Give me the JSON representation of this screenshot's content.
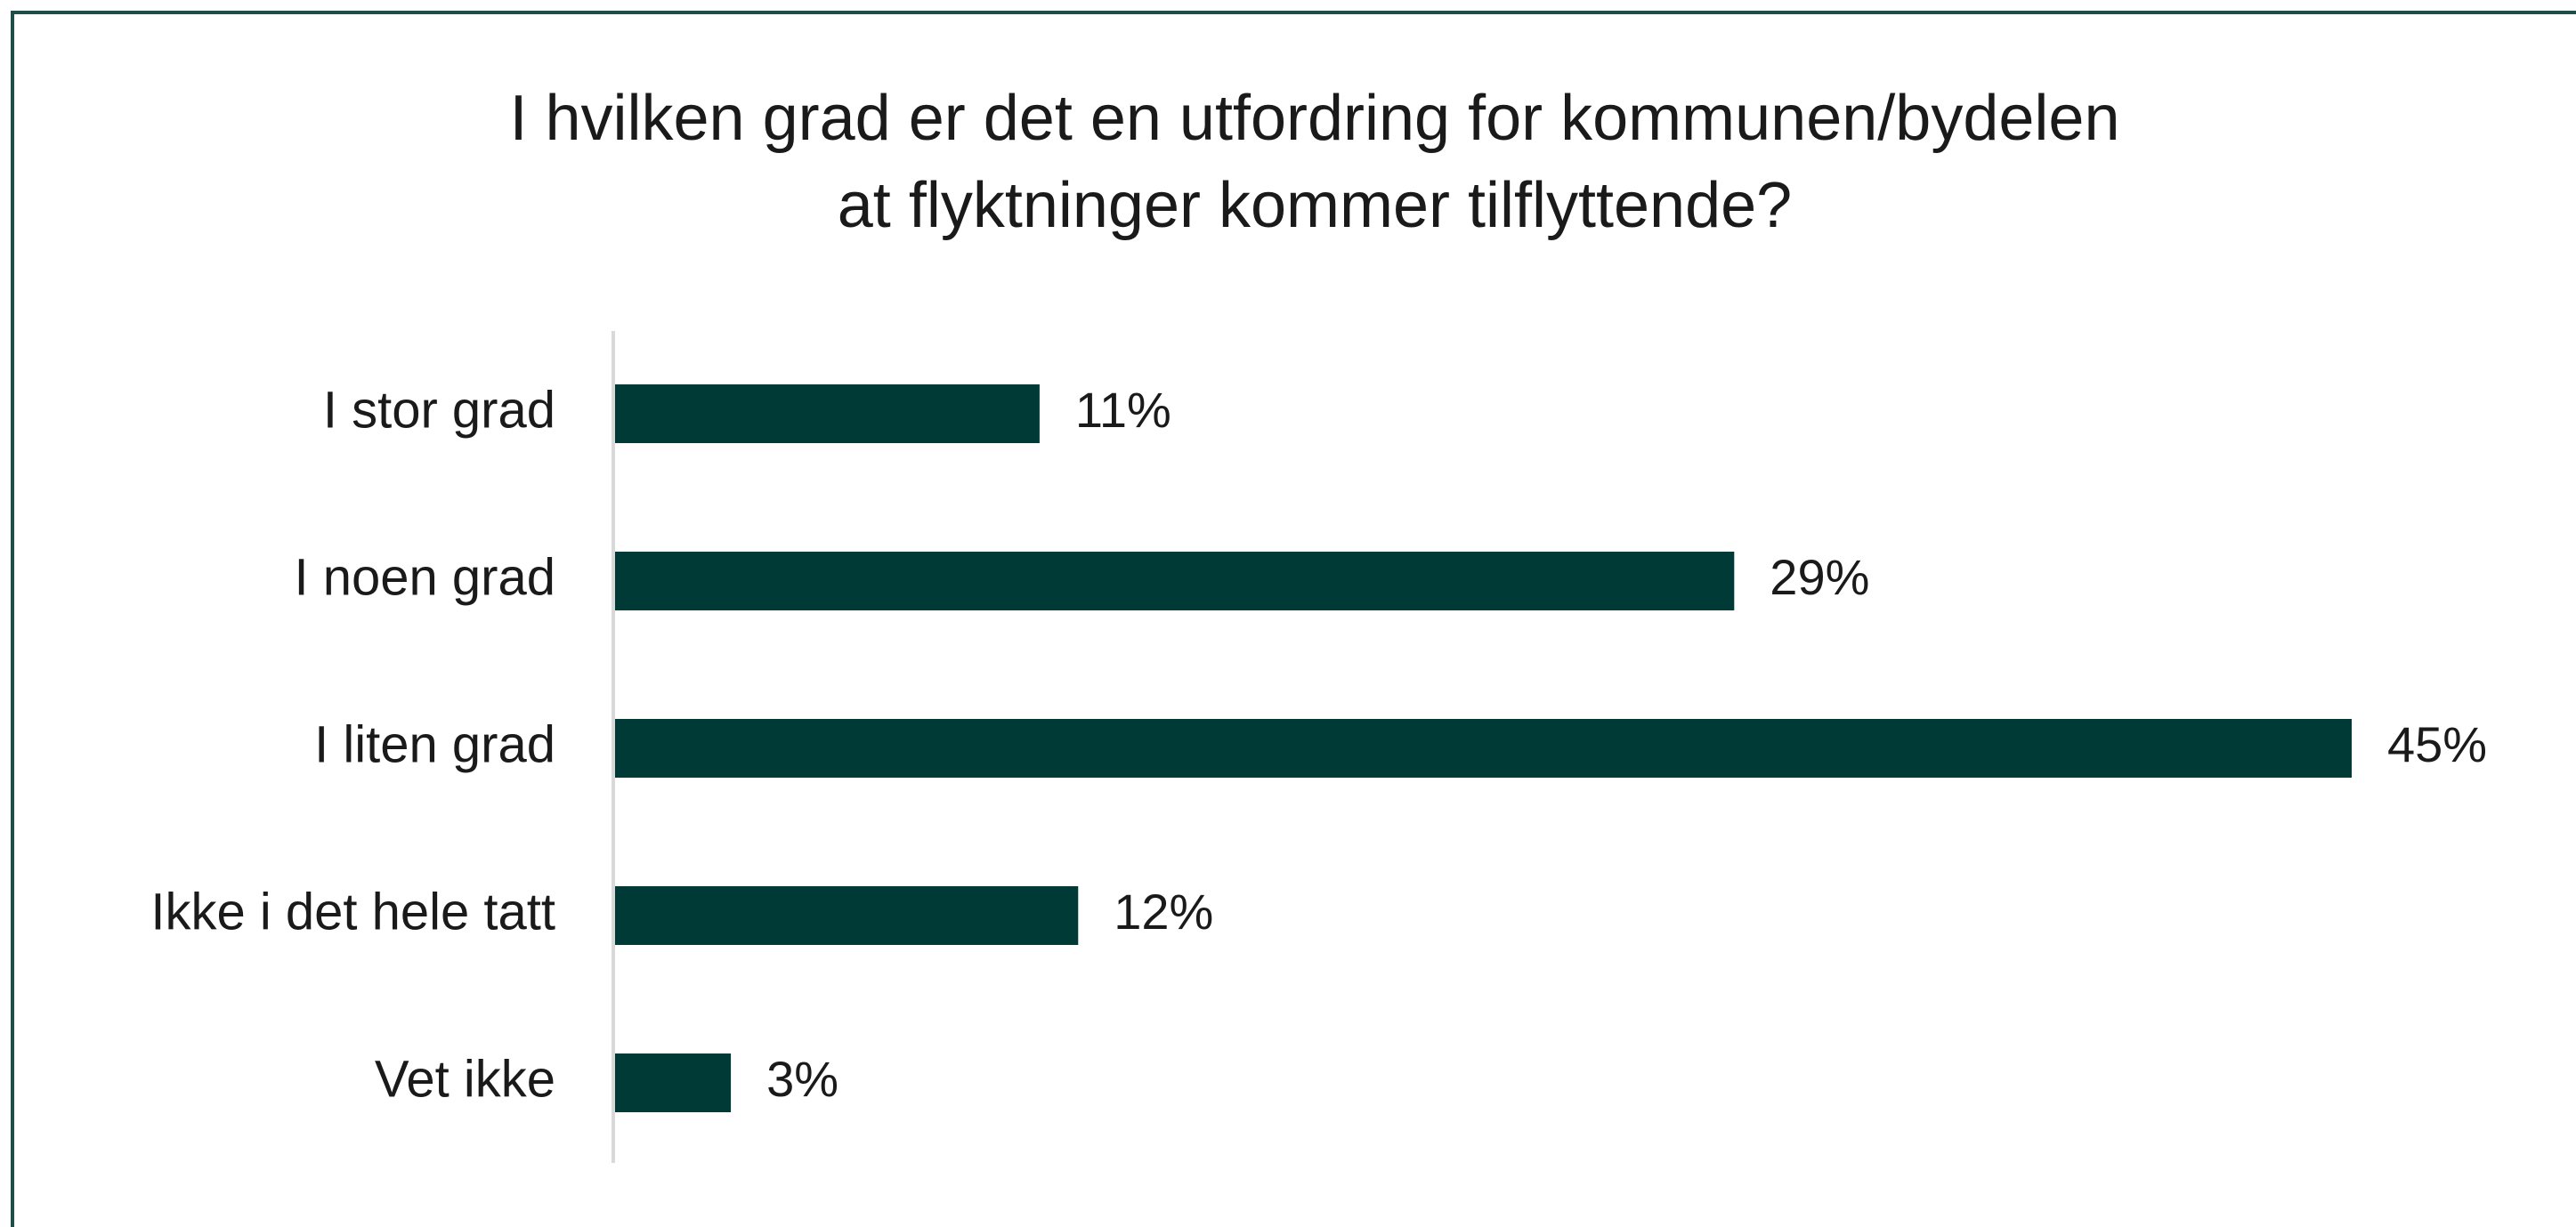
{
  "chart_data": {
    "type": "bar",
    "orientation": "horizontal",
    "title": [
      "I hvilken grad er det en utfordring for kommunen/bydelen",
      "at flyktninger kommer tilflyttende?"
    ],
    "categories": [
      "I stor grad",
      "I noen grad",
      "I liten grad",
      "Ikke i det hele tatt",
      "Vet ikke"
    ],
    "values": [
      11,
      29,
      45,
      12,
      3
    ],
    "value_labels": [
      "11%",
      "29%",
      "45%",
      "12%",
      "3%"
    ],
    "color": "#003a36"
  }
}
